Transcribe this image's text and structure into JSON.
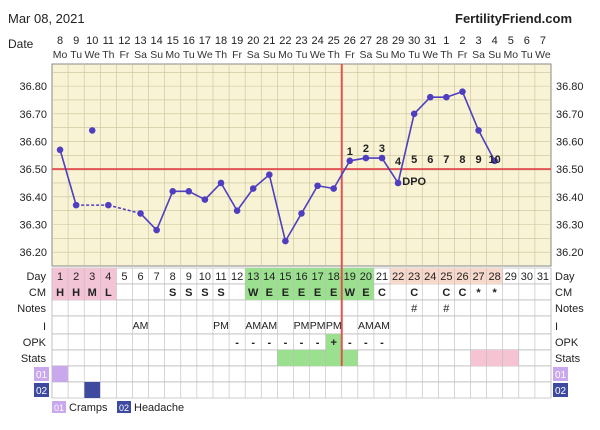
{
  "header": {
    "date": "Mar 08, 2021",
    "brand": "FertilityFriend.com"
  },
  "row_labels": {
    "date": "Date",
    "day": "Day",
    "cm": "CM",
    "notes": "Notes",
    "i": "I",
    "opk": "OPK",
    "stats": "Stats",
    "sym1": "01",
    "sym2": "02"
  },
  "dates": [
    "8",
    "9",
    "10",
    "11",
    "12",
    "13",
    "14",
    "15",
    "16",
    "17",
    "18",
    "19",
    "20",
    "21",
    "22",
    "23",
    "24",
    "25",
    "26",
    "27",
    "28",
    "29",
    "30",
    "31",
    "1",
    "2",
    "3",
    "4",
    "5",
    "6",
    "7"
  ],
  "weekdays": [
    "Mo",
    "Tu",
    "We",
    "Th",
    "Fr",
    "Sa",
    "Su",
    "Mo",
    "Tu",
    "We",
    "Th",
    "Fr",
    "Sa",
    "Su",
    "Mo",
    "Tu",
    "We",
    "Th",
    "Fr",
    "Sa",
    "Su",
    "Mo",
    "Tu",
    "We",
    "Th",
    "Fr",
    "Sa",
    "Su",
    "Mo",
    "Tu",
    "We"
  ],
  "cycle_days": [
    "1",
    "2",
    "3",
    "4",
    "5",
    "6",
    "7",
    "8",
    "9",
    "10",
    "11",
    "12",
    "13",
    "14",
    "15",
    "16",
    "17",
    "18",
    "19",
    "20",
    "21",
    "22",
    "23",
    "24",
    "25",
    "26",
    "27",
    "28",
    "29",
    "30",
    "31"
  ],
  "cm": [
    "H",
    "H",
    "M",
    "L",
    "",
    "",
    "",
    "S",
    "S",
    "S",
    "S",
    "",
    "W",
    "E",
    "E",
    "E",
    "E",
    "E",
    "W",
    "E",
    "C",
    "",
    "C",
    "",
    "C",
    "C",
    "*",
    "*",
    "",
    "",
    ""
  ],
  "notes": [
    "",
    "",
    "",
    "",
    "",
    "",
    "",
    "",
    "",
    "",
    "",
    "",
    "",
    "",
    "",
    "",
    "",
    "",
    "",
    "",
    "",
    "",
    "#",
    "",
    "#",
    "",
    "",
    "",
    "",
    "",
    ""
  ],
  "intercourse": [
    "",
    "",
    "",
    "",
    "",
    "AM",
    "",
    "",
    "",
    "",
    "PM",
    "",
    "AM",
    "AM",
    "",
    "PM",
    "PM",
    "PM",
    "",
    "AM",
    "AM",
    "",
    "",
    "",
    "",
    "",
    "",
    "",
    "",
    "",
    ""
  ],
  "opk": [
    "",
    "",
    "",
    "",
    "",
    "",
    "",
    "",
    "",
    "",
    "",
    "-",
    "-",
    "-",
    "-",
    "-",
    "-",
    "+",
    "-",
    "-",
    "-",
    "",
    "",
    "",
    "",
    "",
    "",
    "",
    "",
    "",
    ""
  ],
  "dpo_label": "DPO",
  "dpo_numbers": [
    "1",
    "2",
    "3",
    "4",
    "5",
    "6",
    "7",
    "8",
    "9",
    "10"
  ],
  "legend": [
    {
      "code": "01",
      "label": "Cramps",
      "color": "#c9a8ee"
    },
    {
      "code": "02",
      "label": "Headache",
      "color": "#3d4aa0"
    }
  ],
  "colors": {
    "plot_bg": "#f8f3d4",
    "line": "#4f3fc0",
    "coverline": "#e05353",
    "ovulation": "#e05353",
    "grid": "#c8c19a",
    "menses": "#f3c3d6",
    "fertile": "#9ae08f",
    "stats": "#f6c3d2",
    "luteal_day": "#f7d9cc"
  },
  "chart_data": {
    "type": "line",
    "title": "",
    "xlabel": "Day",
    "ylabel": "",
    "x": [
      1,
      2,
      3,
      4,
      5,
      6,
      7,
      8,
      9,
      10,
      11,
      12,
      13,
      14,
      15,
      16,
      17,
      18,
      19,
      20,
      21,
      22,
      23,
      24,
      25,
      26,
      27,
      28
    ],
    "ylim": [
      36.15,
      36.88
    ],
    "yticks": [
      "36.20",
      "36.30",
      "36.40",
      "36.50",
      "36.60",
      "36.70",
      "36.80"
    ],
    "ytick_values": [
      36.2,
      36.3,
      36.4,
      36.5,
      36.6,
      36.7,
      36.8
    ],
    "series": [
      {
        "values": [
          36.57,
          36.37,
          36.64,
          36.37,
          null,
          36.34,
          36.28,
          36.42,
          36.42,
          36.39,
          36.45,
          36.35,
          36.43,
          36.48,
          36.24,
          36.34,
          36.44,
          36.43,
          36.53,
          36.54,
          36.54,
          36.45,
          36.7,
          36.76,
          36.76,
          36.78,
          36.64,
          36.53
        ],
        "discarded_days": [
          3
        ],
        "dashed_days": [
          [
            2,
            4
          ],
          [
            4,
            6
          ]
        ]
      }
    ],
    "coverline": 36.5,
    "ovulation_day": 18,
    "menses_days": [
      1,
      2,
      3,
      4
    ],
    "fertile_days": [
      13,
      14,
      15,
      16,
      17,
      18,
      19,
      20
    ],
    "cycle_days_total": 31,
    "grid": true
  }
}
